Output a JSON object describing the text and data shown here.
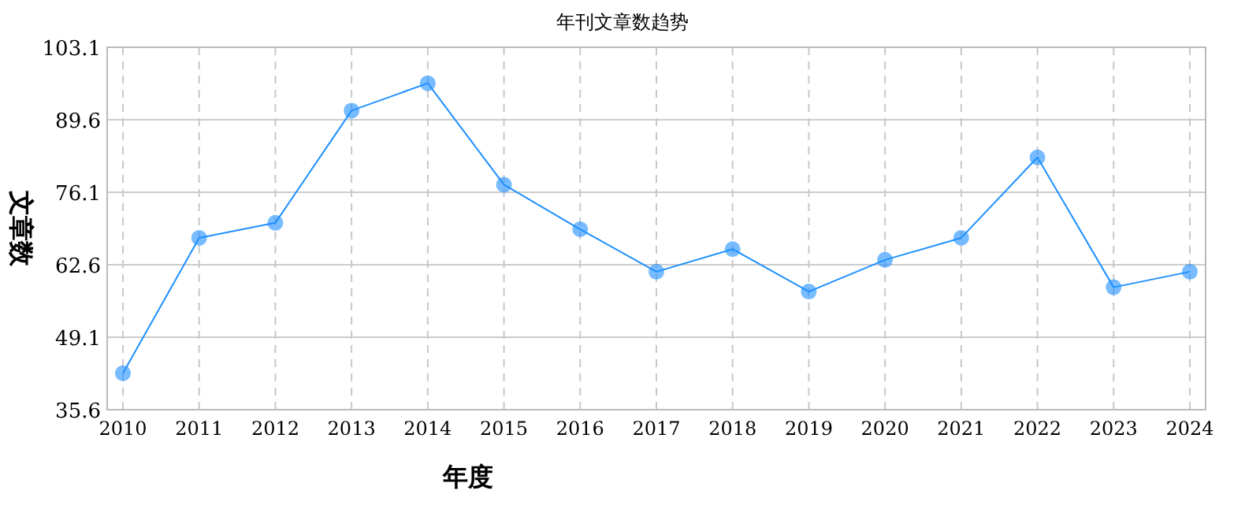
{
  "chart_data": {
    "type": "line",
    "title": "年刊文章数趋势",
    "xlabel": "年度",
    "ylabel": "文章数",
    "categories": [
      "2010",
      "2011",
      "2012",
      "2013",
      "2014",
      "2015",
      "2016",
      "2017",
      "2018",
      "2019",
      "2020",
      "2021",
      "2022",
      "2023",
      "2024"
    ],
    "series": [
      {
        "color": "#1e90ff",
        "values": [
          42.4,
          67.6,
          70.4,
          91.3,
          96.4,
          77.5,
          69.2,
          61.3,
          65.5,
          57.6,
          63.5,
          67.6,
          82.6,
          58.4,
          61.3
        ]
      }
    ],
    "ylim": [
      35.6,
      103.1
    ],
    "yticks": [
      35.6,
      49.1,
      62.6,
      76.1,
      89.6,
      103.1
    ],
    "grid": true,
    "marker": "circle",
    "line_style": "solid"
  }
}
